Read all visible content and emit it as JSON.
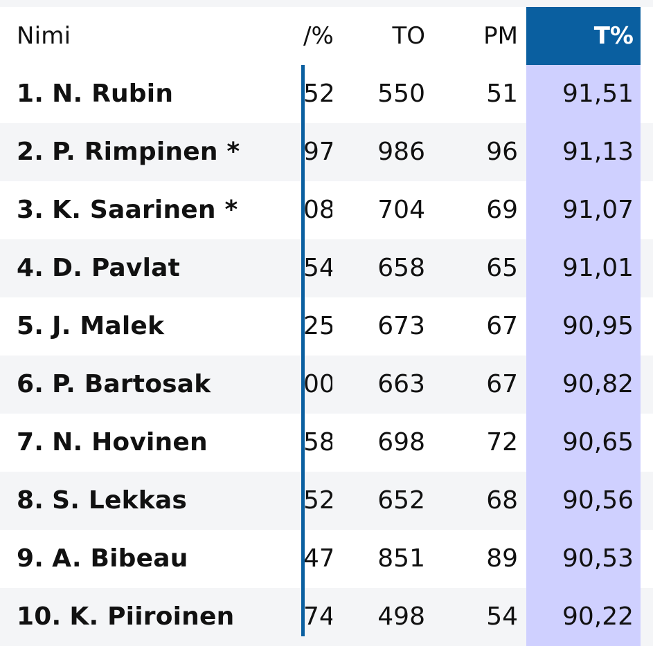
{
  "header": {
    "name": "Nimi",
    "clipped": "/%",
    "to": "TO",
    "pm": "PM",
    "tpct": "T%"
  },
  "rows": [
    {
      "rank": "1.",
      "name": "N. Rubin",
      "clipped": "52",
      "to": "550",
      "pm": "51",
      "tpct": "91,51"
    },
    {
      "rank": "2.",
      "name": "P. Rimpinen *",
      "clipped": "97",
      "to": "986",
      "pm": "96",
      "tpct": "91,13"
    },
    {
      "rank": "3.",
      "name": "K. Saarinen *",
      "clipped": "08",
      "to": "704",
      "pm": "69",
      "tpct": "91,07"
    },
    {
      "rank": "4.",
      "name": "D. Pavlat",
      "clipped": "54",
      "to": "658",
      "pm": "65",
      "tpct": "91,01"
    },
    {
      "rank": "5.",
      "name": "J. Malek",
      "clipped": "25",
      "to": "673",
      "pm": "67",
      "tpct": "90,95"
    },
    {
      "rank": "6.",
      "name": "P. Bartosak",
      "clipped": "00",
      "to": "663",
      "pm": "67",
      "tpct": "90,82"
    },
    {
      "rank": "7.",
      "name": "N. Hovinen",
      "clipped": "58",
      "to": "698",
      "pm": "72",
      "tpct": "90,65"
    },
    {
      "rank": "8.",
      "name": "S. Lekkas",
      "clipped": "52",
      "to": "652",
      "pm": "68",
      "tpct": "90,56"
    },
    {
      "rank": "9.",
      "name": "A. Bibeau",
      "clipped": "47",
      "to": "851",
      "pm": "89",
      "tpct": "90,53"
    },
    {
      "rank": "10.",
      "name": "K. Piiroinen",
      "clipped": "74",
      "to": "498",
      "pm": "54",
      "tpct": "90,22"
    }
  ],
  "colors": {
    "header_accent": "#0a5fa0",
    "highlight_column": "#cfd0ff",
    "alt_row": "#f4f5f7"
  }
}
